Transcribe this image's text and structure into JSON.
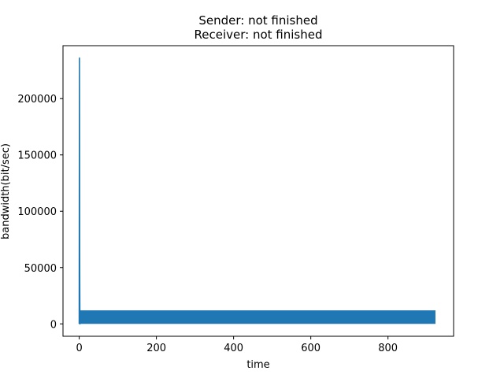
{
  "chart_data": {
    "type": "line",
    "title_lines": [
      "Sender: not finished",
      "Receiver: not finished"
    ],
    "xlabel": "time",
    "ylabel": "bandwidth(bit/sec)",
    "xlim": [
      -42,
      970
    ],
    "ylim": [
      -11000,
      247000
    ],
    "xticks": [
      0,
      200,
      400,
      600,
      800
    ],
    "yticks": [
      0,
      50000,
      100000,
      150000,
      200000
    ],
    "grid": false,
    "legend": "none",
    "series": [
      {
        "color": "#1f77b4",
        "spike": [
          [
            0,
            0
          ],
          [
            0.6,
            236000
          ],
          [
            1.2,
            60000
          ],
          [
            1.8,
            0
          ]
        ],
        "oscillation": {
          "x_start": 2,
          "x_end": 923,
          "low": 0,
          "high": 12000
        }
      }
    ]
  }
}
